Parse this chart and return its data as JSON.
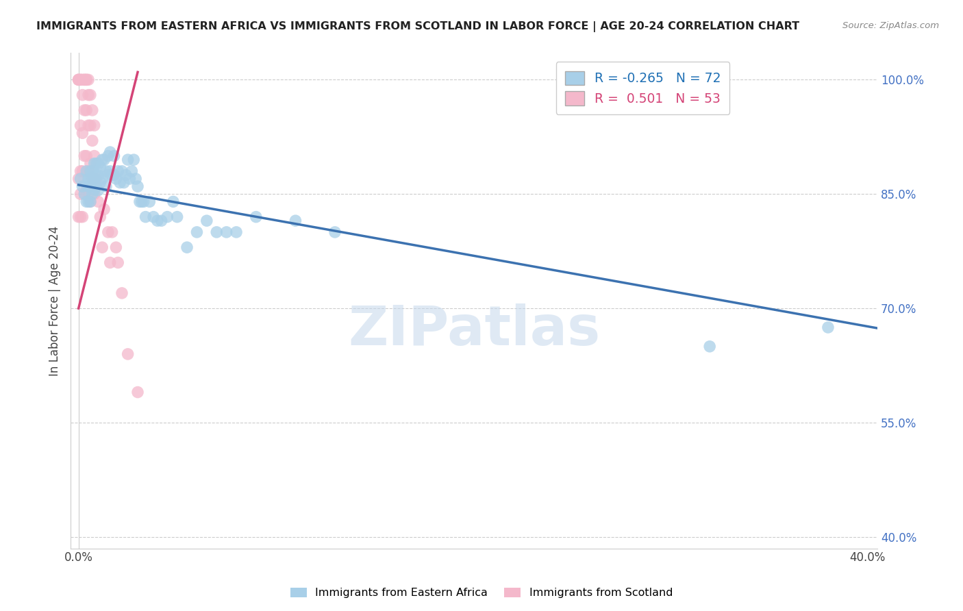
{
  "title": "IMMIGRANTS FROM EASTERN AFRICA VS IMMIGRANTS FROM SCOTLAND IN LABOR FORCE | AGE 20-24 CORRELATION CHART",
  "source": "Source: ZipAtlas.com",
  "ylabel": "In Labor Force | Age 20-24",
  "xlim": [
    -0.004,
    0.405
  ],
  "ylim": [
    0.385,
    1.035
  ],
  "yticks": [
    0.4,
    0.55,
    0.7,
    0.85,
    1.0
  ],
  "ytick_labels": [
    "40.0%",
    "55.0%",
    "70.0%",
    "85.0%",
    "100.0%"
  ],
  "xticks": [
    0.0,
    0.05,
    0.1,
    0.15,
    0.2,
    0.25,
    0.3,
    0.35,
    0.4
  ],
  "xtick_labels": [
    "0.0%",
    "",
    "",
    "",
    "",
    "",
    "",
    "",
    "40.0%"
  ],
  "blue_R": -0.265,
  "blue_N": 72,
  "pink_R": 0.501,
  "pink_N": 53,
  "blue_color": "#a8cfe8",
  "pink_color": "#f4b8cb",
  "blue_line_color": "#3c72b0",
  "pink_line_color": "#d44477",
  "legend_label_blue": "Immigrants from Eastern Africa",
  "legend_label_pink": "Immigrants from Scotland",
  "watermark": "ZIPatlas",
  "blue_x": [
    0.001,
    0.002,
    0.003,
    0.004,
    0.004,
    0.005,
    0.005,
    0.005,
    0.006,
    0.006,
    0.006,
    0.006,
    0.007,
    0.007,
    0.007,
    0.008,
    0.008,
    0.008,
    0.009,
    0.009,
    0.009,
    0.01,
    0.01,
    0.01,
    0.011,
    0.011,
    0.012,
    0.012,
    0.013,
    0.014,
    0.014,
    0.015,
    0.015,
    0.016,
    0.016,
    0.017,
    0.018,
    0.018,
    0.019,
    0.02,
    0.021,
    0.022,
    0.023,
    0.024,
    0.025,
    0.026,
    0.027,
    0.028,
    0.029,
    0.03,
    0.031,
    0.032,
    0.033,
    0.034,
    0.036,
    0.038,
    0.04,
    0.042,
    0.045,
    0.048,
    0.05,
    0.055,
    0.06,
    0.065,
    0.07,
    0.075,
    0.08,
    0.09,
    0.11,
    0.13,
    0.32,
    0.38
  ],
  "blue_y": [
    0.87,
    0.86,
    0.85,
    0.88,
    0.84,
    0.87,
    0.86,
    0.84,
    0.88,
    0.87,
    0.86,
    0.84,
    0.88,
    0.87,
    0.85,
    0.89,
    0.87,
    0.855,
    0.89,
    0.875,
    0.86,
    0.89,
    0.875,
    0.855,
    0.885,
    0.865,
    0.895,
    0.87,
    0.895,
    0.88,
    0.86,
    0.9,
    0.875,
    0.905,
    0.88,
    0.875,
    0.9,
    0.875,
    0.87,
    0.88,
    0.865,
    0.88,
    0.865,
    0.875,
    0.895,
    0.87,
    0.88,
    0.895,
    0.87,
    0.86,
    0.84,
    0.84,
    0.84,
    0.82,
    0.84,
    0.82,
    0.815,
    0.815,
    0.82,
    0.84,
    0.82,
    0.78,
    0.8,
    0.815,
    0.8,
    0.8,
    0.8,
    0.82,
    0.815,
    0.8,
    0.65,
    0.675
  ],
  "pink_x": [
    0.0,
    0.0,
    0.0,
    0.0,
    0.0,
    0.001,
    0.001,
    0.001,
    0.001,
    0.001,
    0.001,
    0.002,
    0.002,
    0.002,
    0.002,
    0.002,
    0.003,
    0.003,
    0.003,
    0.003,
    0.003,
    0.004,
    0.004,
    0.004,
    0.004,
    0.004,
    0.005,
    0.005,
    0.005,
    0.005,
    0.006,
    0.006,
    0.006,
    0.006,
    0.007,
    0.007,
    0.007,
    0.008,
    0.008,
    0.008,
    0.009,
    0.01,
    0.011,
    0.012,
    0.013,
    0.015,
    0.016,
    0.017,
    0.019,
    0.02,
    0.022,
    0.025,
    0.03
  ],
  "pink_y": [
    1.0,
    1.0,
    1.0,
    0.87,
    0.82,
    1.0,
    1.0,
    0.94,
    0.88,
    0.85,
    0.82,
    1.0,
    0.98,
    0.93,
    0.88,
    0.82,
    1.0,
    1.0,
    0.96,
    0.9,
    0.85,
    1.0,
    1.0,
    0.96,
    0.9,
    0.855,
    1.0,
    0.98,
    0.94,
    0.88,
    0.98,
    0.94,
    0.89,
    0.84,
    0.96,
    0.92,
    0.87,
    0.94,
    0.9,
    0.85,
    0.87,
    0.84,
    0.82,
    0.78,
    0.83,
    0.8,
    0.76,
    0.8,
    0.78,
    0.76,
    0.72,
    0.64,
    0.59
  ],
  "blue_trend_x0": 0.0,
  "blue_trend_x1": 0.405,
  "blue_trend_y0": 0.862,
  "blue_trend_y1": 0.674,
  "pink_trend_x0": 0.0,
  "pink_trend_x1": 0.03,
  "pink_trend_y0": 0.7,
  "pink_trend_y1": 1.01
}
